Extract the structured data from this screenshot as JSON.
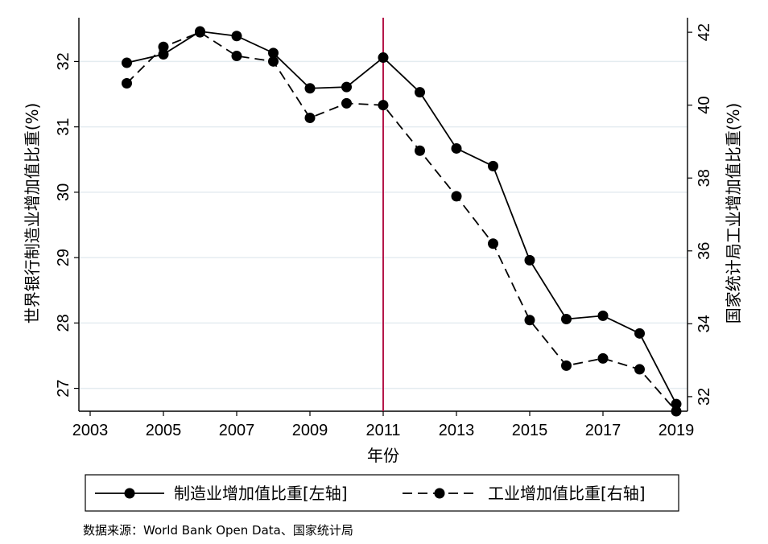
{
  "chart_data": {
    "type": "line",
    "x": [
      2004,
      2005,
      2006,
      2007,
      2008,
      2009,
      2010,
      2011,
      2012,
      2013,
      2014,
      2015,
      2016,
      2017,
      2018,
      2019
    ],
    "series": [
      {
        "name": "制造业增加值比重[左轴]",
        "axis": "left",
        "line_style": "solid",
        "values": [
          31.98,
          32.11,
          32.46,
          32.39,
          32.13,
          31.59,
          31.61,
          32.06,
          31.53,
          30.67,
          30.4,
          28.96,
          28.06,
          28.11,
          27.84,
          26.76
        ]
      },
      {
        "name": "工业增加值比重[右轴]",
        "axis": "right",
        "line_style": "dashed",
        "values": [
          40.6,
          41.6,
          42.0,
          41.35,
          41.2,
          39.65,
          40.05,
          40.0,
          38.75,
          37.5,
          36.2,
          34.1,
          32.85,
          33.05,
          32.75,
          31.6
        ]
      }
    ],
    "xlabel": "年份",
    "ylabel_left": "世界银行制造业增加值比重(%)",
    "ylabel_right": "国家统计局工业增加值比重(%)",
    "x_ticks": [
      "2003",
      "2005",
      "2007",
      "2009",
      "2011",
      "2013",
      "2015",
      "2017",
      "2019"
    ],
    "y_left_ticks": [
      "27",
      "28",
      "29",
      "30",
      "31",
      "32"
    ],
    "y_right_ticks": [
      "32",
      "34",
      "36",
      "38",
      "40",
      "42"
    ],
    "xlim": [
      2003,
      2019
    ],
    "ylim_left": [
      26.65,
      32.67
    ],
    "ylim_right": [
      31.6,
      42.4
    ],
    "vline_x": 2011,
    "vline_color": "#b5174a",
    "grid": "horizontal",
    "grid_color": "#e4ecf0",
    "legend_position": "bottom"
  },
  "source_note": "数据来源：World Bank Open Data、国家统计局"
}
